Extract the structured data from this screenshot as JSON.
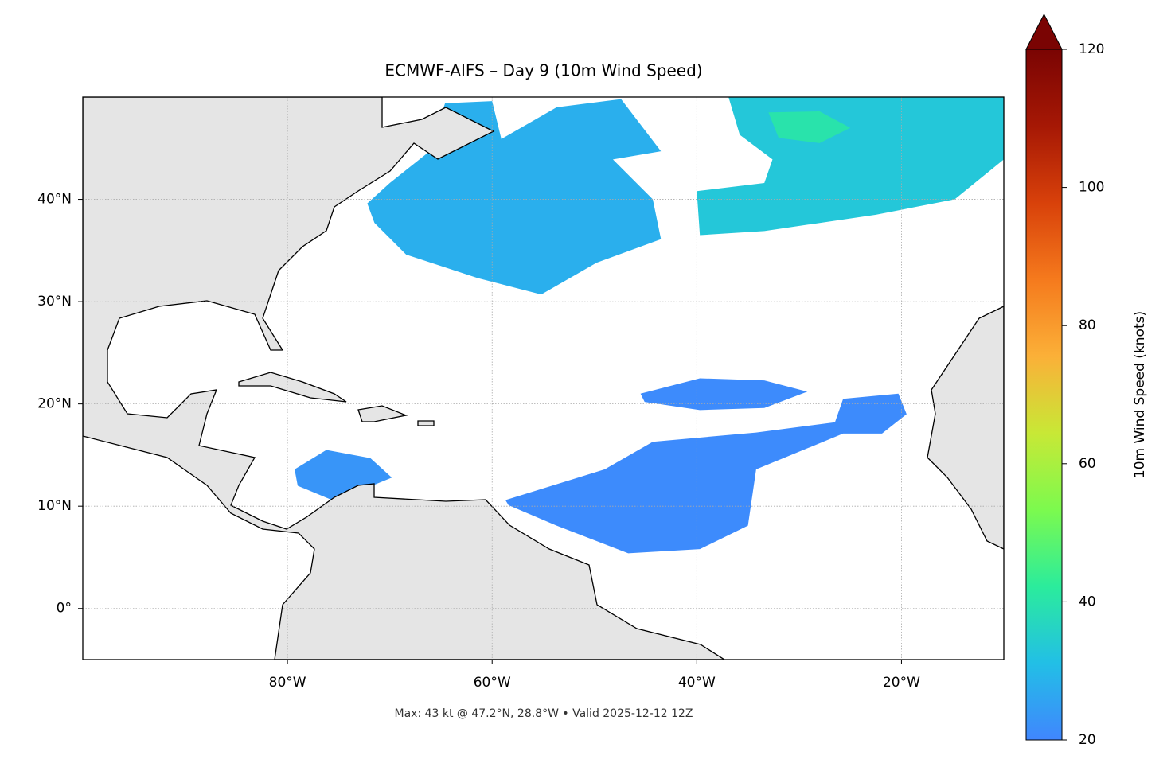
{
  "chart_data": {
    "type": "map",
    "title": "ECMWF-AIFS – Day 9 (10m Wind Speed)",
    "footer": "Max: 43 kt @ 47.2°N, 28.8°W • Valid 2025-12-12 12Z",
    "xlim": [
      -100,
      -10
    ],
    "ylim": [
      -5,
      50
    ],
    "xticks": [
      {
        "value": -80,
        "label": "80°W"
      },
      {
        "value": -60,
        "label": "60°W"
      },
      {
        "value": -40,
        "label": "40°W"
      },
      {
        "value": -20,
        "label": "20°W"
      }
    ],
    "yticks": [
      {
        "value": 0,
        "label": "0°"
      },
      {
        "value": 10,
        "label": "10°N"
      },
      {
        "value": 20,
        "label": "20°N"
      },
      {
        "value": 30,
        "label": "30°N"
      },
      {
        "value": 40,
        "label": "40°N"
      }
    ],
    "grid": true,
    "colorbar": {
      "label": "10m Wind Speed (knots)",
      "clim": [
        20,
        120
      ],
      "ticks": [
        20,
        40,
        60,
        80,
        100,
        120
      ],
      "extend": "max",
      "colors": [
        "#4086fe",
        "#22bfe6",
        "#2bec9c",
        "#7cfa4e",
        "#c8e836",
        "#fbb038",
        "#f57a1d",
        "#d8410a",
        "#a61805",
        "#7a0403"
      ]
    },
    "wind_regions": [
      {
        "speed": 28,
        "polygon": [
          [
            -72.2,
            39.6
          ],
          [
            -70,
            41.6
          ],
          [
            -66.1,
            44.7
          ],
          [
            -64.6,
            49.4
          ],
          [
            -60,
            49.6
          ],
          [
            -59.1,
            45.9
          ],
          [
            -53.7,
            49
          ],
          [
            -47.4,
            49.8
          ],
          [
            -43.5,
            44.7
          ],
          [
            -48.2,
            43.9
          ],
          [
            -44.3,
            40
          ],
          [
            -43.5,
            36.1
          ],
          [
            -49.8,
            33.8
          ],
          [
            -55.2,
            30.7
          ],
          [
            -61.4,
            32.3
          ],
          [
            -68.4,
            34.6
          ],
          [
            -71.5,
            37.7
          ]
        ]
      },
      {
        "speed": 33,
        "polygon": [
          [
            -36.9,
            50
          ],
          [
            -10,
            50
          ],
          [
            -10,
            43.9
          ],
          [
            -14.8,
            40
          ],
          [
            -22.5,
            38.5
          ],
          [
            -33.4,
            36.9
          ],
          [
            -39.7,
            36.5
          ],
          [
            -40,
            40.8
          ],
          [
            -33.4,
            41.6
          ],
          [
            -32.6,
            43.9
          ],
          [
            -35.8,
            46.3
          ]
        ]
      },
      {
        "speed": 40,
        "polygon": [
          [
            -33,
            48.5
          ],
          [
            -28,
            48.6
          ],
          [
            -25,
            47
          ],
          [
            -28,
            45.5
          ],
          [
            -32,
            46
          ]
        ]
      },
      {
        "speed": 21,
        "polygon": [
          [
            -45.5,
            21
          ],
          [
            -39.7,
            22.5
          ],
          [
            -33.4,
            22.3
          ],
          [
            -29.2,
            21.2
          ],
          [
            -33.4,
            19.6
          ],
          [
            -39.7,
            19.4
          ],
          [
            -45.1,
            20.2
          ]
        ]
      },
      {
        "speed": 21,
        "polygon": [
          [
            -58.7,
            10.6
          ],
          [
            -49,
            13.6
          ],
          [
            -44.3,
            16.3
          ],
          [
            -34.2,
            17.2
          ],
          [
            -26.5,
            18.2
          ],
          [
            -25.7,
            20.5
          ],
          [
            -20.3,
            21
          ],
          [
            -19.5,
            19
          ],
          [
            -21.9,
            17.1
          ],
          [
            -25.7,
            17.1
          ],
          [
            -34.2,
            13.6
          ],
          [
            -35,
            8.1
          ],
          [
            -39.7,
            5.8
          ],
          [
            -46.7,
            5.4
          ],
          [
            -53.7,
            8.1
          ],
          [
            -58.4,
            10.1
          ]
        ]
      },
      {
        "speed": 23,
        "polygon": [
          [
            -79.3,
            13.6
          ],
          [
            -76.2,
            15.5
          ],
          [
            -71.9,
            14.7
          ],
          [
            -69.8,
            12.8
          ],
          [
            -75.4,
            10.5
          ],
          [
            -79,
            12
          ]
        ]
      }
    ]
  }
}
